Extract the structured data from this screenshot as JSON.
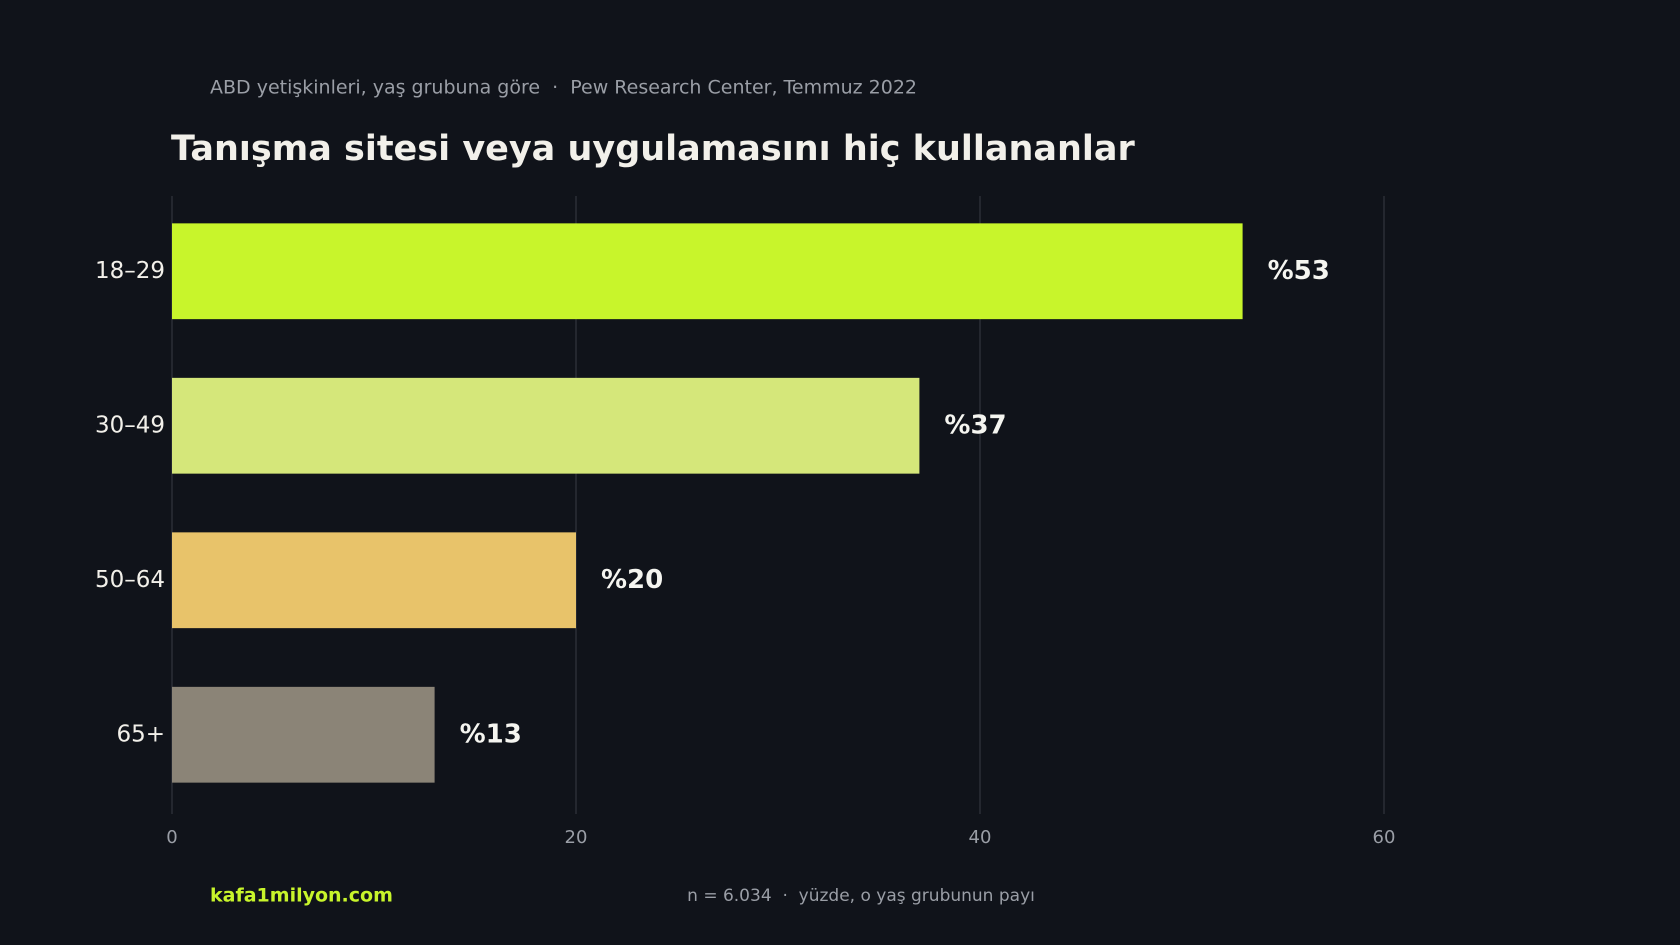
{
  "chart_data": {
    "type": "bar",
    "orientation": "horizontal",
    "subtitle": "ABD yetişkinleri, yaş grubuna göre  ·  Pew Research Center, Temmuz 2022",
    "title": "Tanışma sitesi veya uygulamasını hiç kullananlar",
    "categories": [
      "18–29",
      "30–49",
      "50–64",
      "65+"
    ],
    "values": [
      53,
      37,
      20,
      13
    ],
    "value_labels": [
      "%53",
      "%37",
      "%20",
      "%13"
    ],
    "colors": [
      "#c8f52b",
      "#d5e77a",
      "#e8c36a",
      "#8b8477"
    ],
    "xlim": [
      0,
      70
    ],
    "xticks": [
      0,
      20,
      40,
      60
    ],
    "grid": true,
    "brand": "kafa1milyon.com",
    "note": "n = 6.034  ·  yüzde, o yaş grubunun payı"
  }
}
